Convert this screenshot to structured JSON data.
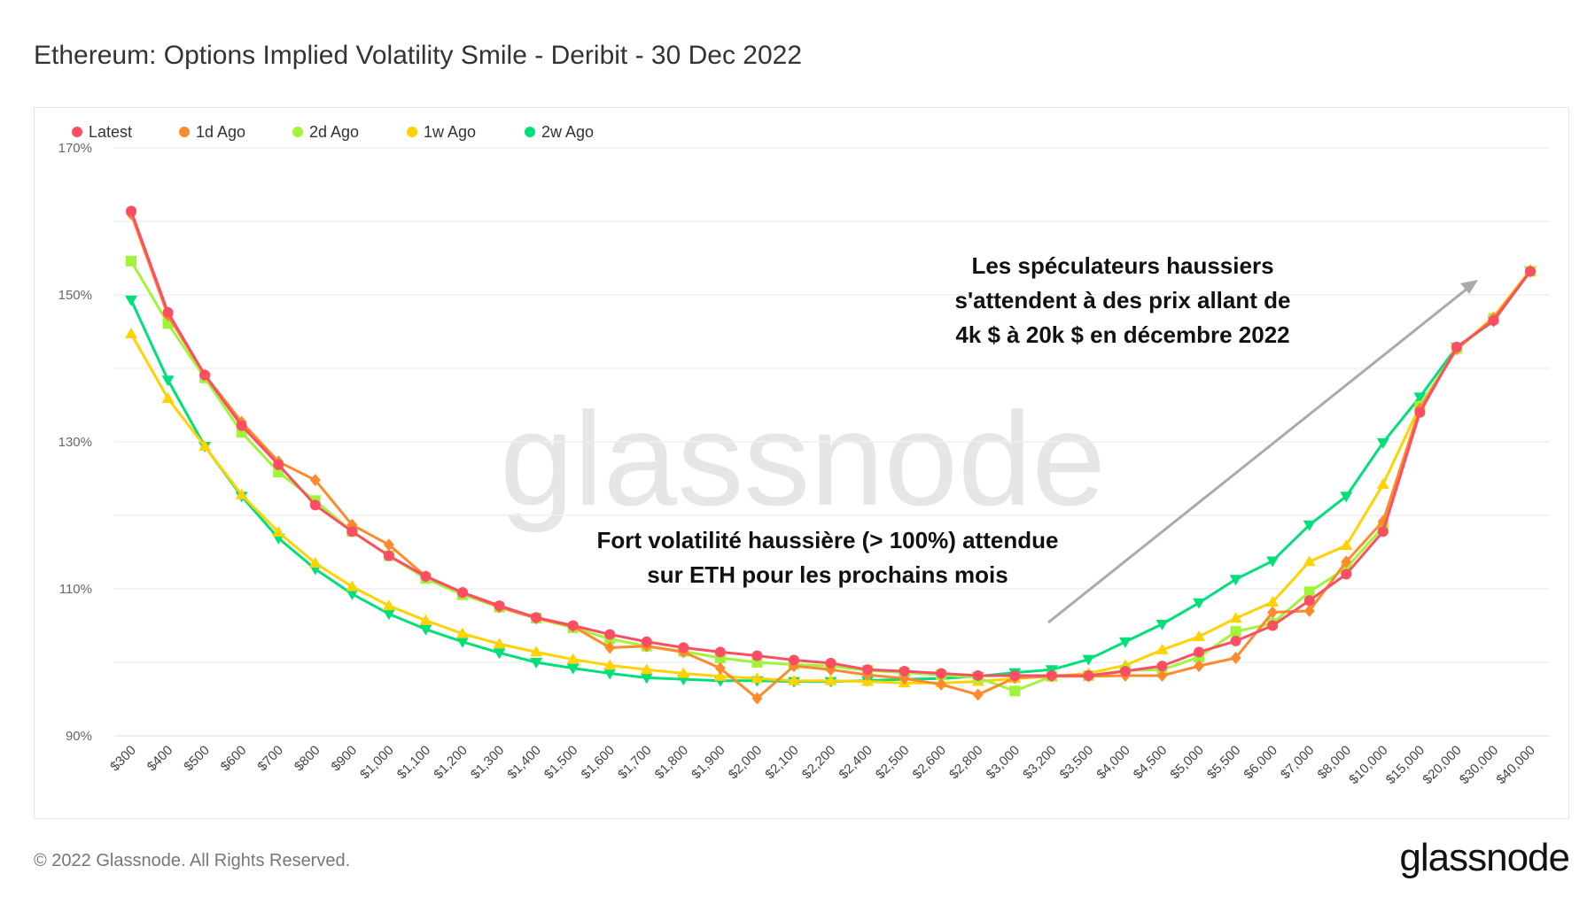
{
  "title": "Ethereum: Options Implied Volatility Smile - Deribit - 30 Dec 2022",
  "footer": "© 2022 Glassnode. All Rights Reserved.",
  "logo": "glassnode",
  "watermark": "glassnode",
  "annotations": {
    "top": [
      "Les spéculateurs haussiers",
      "s'attendent à des prix allant de",
      "4k $ à 20k $ en décembre 2022"
    ],
    "middle": [
      "Fort volatilité haussière (> 100%) attendue",
      "sur ETH pour les prochains mois"
    ]
  },
  "chart_data": {
    "type": "line",
    "title": "Ethereum: Options Implied Volatility Smile - Deribit - 30 Dec 2022",
    "xlabel": "",
    "ylabel": "",
    "ylim": [
      90,
      170
    ],
    "yticks": [
      "90%",
      "110%",
      "130%",
      "150%",
      "170%"
    ],
    "grid": true,
    "legend": "top-left",
    "categories": [
      "$300",
      "$400",
      "$500",
      "$600",
      "$700",
      "$800",
      "$900",
      "$1,000",
      "$1,100",
      "$1,200",
      "$1,300",
      "$1,400",
      "$1,500",
      "$1,600",
      "$1,700",
      "$1,800",
      "$1,900",
      "$2,000",
      "$2,100",
      "$2,200",
      "$2,400",
      "$2,500",
      "$2,600",
      "$2,800",
      "$3,000",
      "$3,200",
      "$3,500",
      "$4,000",
      "$4,500",
      "$5,000",
      "$5,500",
      "$6,000",
      "$7,000",
      "$8,000",
      "$10,000",
      "$15,000",
      "$20,000",
      "$30,000",
      "$40,000"
    ],
    "series": [
      {
        "name": "Latest",
        "color": "#ff4d63",
        "marker": "circle",
        "values": [
          161.4,
          147.6,
          139.1,
          132.2,
          126.9,
          121.4,
          117.8,
          114.5,
          111.7,
          109.5,
          107.7,
          106.1,
          105.0,
          103.8,
          102.8,
          102.0,
          101.4,
          100.9,
          100.3,
          99.9,
          99.0,
          98.8,
          98.5,
          98.2,
          98.2,
          98.2,
          98.2,
          98.8,
          99.5,
          101.4,
          102.9,
          105.0,
          108.4,
          112.0,
          117.8,
          134.0,
          142.9,
          146.5,
          153.2
        ]
      },
      {
        "name": "1d Ago",
        "color": "#ff8a2b",
        "marker": "diamond",
        "values": [
          161.0,
          147.2,
          139.1,
          132.7,
          127.3,
          124.8,
          118.7,
          116.0,
          111.7,
          109.5,
          107.5,
          106.0,
          104.9,
          102.0,
          102.2,
          101.4,
          99.2,
          95.1,
          99.5,
          99.0,
          98.3,
          97.8,
          97.0,
          95.6,
          97.9,
          98.1,
          98.1,
          98.2,
          98.2,
          99.5,
          100.6,
          106.8,
          107.0,
          113.7,
          119.2,
          134.5,
          142.6,
          146.8,
          153.2
        ]
      },
      {
        "name": "2d Ago",
        "color": "#a0f53a",
        "marker": "square",
        "values": [
          154.6,
          146.1,
          138.7,
          131.3,
          125.9,
          122.0,
          117.8,
          114.5,
          111.4,
          109.2,
          107.5,
          106.0,
          104.7,
          103.2,
          102.2,
          101.5,
          100.6,
          100.0,
          99.7,
          99.5,
          98.9,
          98.6,
          98.3,
          97.9,
          96.1,
          98.1,
          98.2,
          98.9,
          99.0,
          100.7,
          104.2,
          105.3,
          109.6,
          112.8,
          118.4,
          134.8,
          142.7,
          146.8,
          153.2
        ]
      },
      {
        "name": "1w Ago",
        "color": "#ffd200",
        "marker": "triangle-up",
        "values": [
          144.7,
          135.9,
          129.4,
          122.8,
          117.7,
          113.5,
          110.3,
          107.7,
          105.7,
          103.9,
          102.5,
          101.4,
          100.4,
          99.6,
          99.0,
          98.5,
          98.1,
          97.8,
          97.5,
          97.5,
          97.4,
          97.2,
          97.2,
          97.4,
          97.8,
          98.1,
          98.5,
          99.6,
          101.7,
          103.5,
          106.0,
          108.2,
          113.7,
          115.9,
          124.2,
          134.9,
          142.6,
          147.0,
          153.4
        ]
      },
      {
        "name": "2w Ago",
        "color": "#00e07a",
        "marker": "triangle-down",
        "values": [
          149.3,
          138.4,
          129.4,
          122.6,
          116.9,
          112.7,
          109.3,
          106.6,
          104.5,
          102.8,
          101.3,
          100.0,
          99.2,
          98.5,
          97.9,
          97.7,
          97.5,
          97.5,
          97.4,
          97.4,
          97.5,
          97.7,
          97.8,
          98.1,
          98.6,
          99.0,
          100.4,
          102.8,
          105.2,
          108.1,
          111.3,
          113.8,
          118.7,
          122.6,
          129.9,
          136.1,
          142.9,
          146.4,
          153.3
        ]
      }
    ]
  }
}
